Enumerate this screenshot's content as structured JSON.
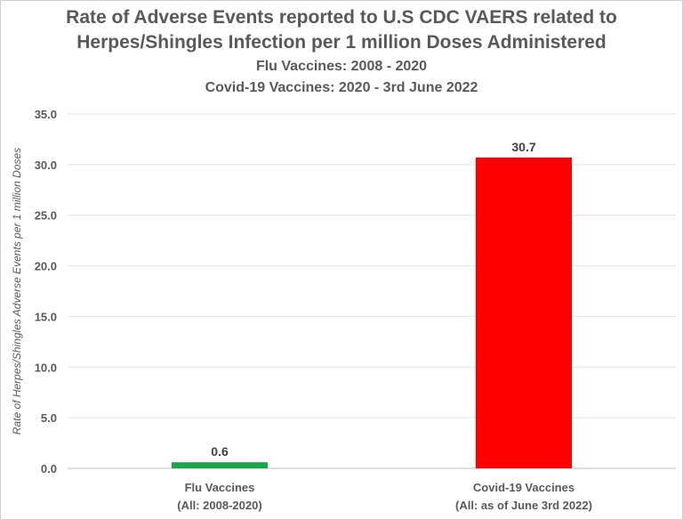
{
  "chart_data": {
    "type": "bar",
    "title": "Rate of Adverse Events reported to U.S CDC VAERS related to",
    "title_line2": "Herpes/Shingles Infection per 1 million Doses Administered",
    "subtitle": "Flu Vaccines: 2008 - 2020",
    "subtitle_line2": "Covid-19 Vaccines: 2020 - 3rd June 2022",
    "ylabel": "Rate of Herpes/Shingles Adverse Events per 1 million Doses",
    "xlabel": "",
    "ylim": [
      0,
      35
    ],
    "yticks": [
      "0.0",
      "5.0",
      "10.0",
      "15.0",
      "20.0",
      "25.0",
      "30.0",
      "35.0"
    ],
    "grid": true,
    "categories": [
      {
        "line1": "Flu Vaccines",
        "line2": "(All: 2008-2020)"
      },
      {
        "line1": "Covid-19 Vaccines",
        "line2": "(All: as of June 3rd 2022)"
      }
    ],
    "values": [
      0.6,
      30.7
    ],
    "data_labels": [
      "0.6",
      "30.7"
    ],
    "colors": [
      "#1aa64a",
      "#ff0000"
    ]
  }
}
